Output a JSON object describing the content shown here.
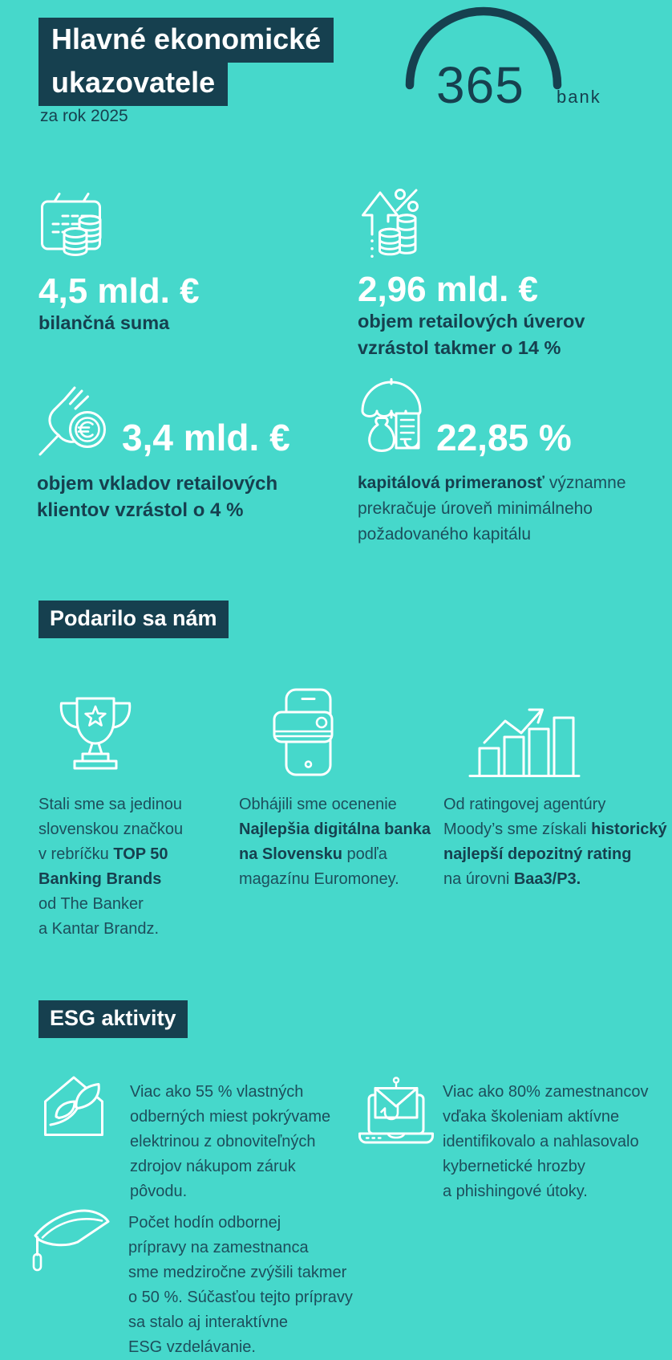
{
  "colors": {
    "background": "#46D8CB",
    "dark_block": "#16404F",
    "body_text": "#1D4E5C",
    "value_text": "#FFFFFF"
  },
  "header": {
    "title_line1": "Hlavné ekonomické",
    "title_line2": "ukazovatele",
    "subtitle": "za rok 2025"
  },
  "logo": {
    "number": "365",
    "word": "bank",
    "arc_icon": "logo-arc-icon"
  },
  "stats": [
    {
      "icon": "calendar-coins-icon",
      "value": "4,5 mld. €",
      "label": [
        {
          "t": "bilančná suma",
          "b": true
        }
      ]
    },
    {
      "icon": "growth-percent-coins-icon",
      "value": "2,96 mld. €",
      "label": [
        {
          "t": "objem retailových úverov\nvzrástol takmer o 14 %",
          "b": true
        }
      ]
    },
    {
      "icon": "hand-euro-coin-icon",
      "value": "3,4 mld. €",
      "label": [
        {
          "t": "objem vkladov retailových\nklientov vzrástol o 4 %",
          "b": true
        }
      ]
    },
    {
      "icon": "umbrella-money-bag-icon",
      "value": "22,85 %",
      "label": [
        {
          "t": "kapitálová primeranosť",
          "b": true
        },
        {
          "t": " významne\nprekračuje úroveň minimálneho\npožadovaného kapitálu",
          "b": false
        }
      ]
    }
  ],
  "sections": {
    "achievements": {
      "heading": "Podarilo sa nám",
      "items": [
        {
          "icon": "trophy-icon",
          "text": [
            {
              "t": "Stali sme sa jedinou\nslovenskou značkou\nv rebríčku ",
              "b": false
            },
            {
              "t": "TOP 50\nBanking Brands",
              "b": true
            },
            {
              "t": "\nod The Banker\na Kantar Brandz.",
              "b": false
            }
          ]
        },
        {
          "icon": "phone-card-icon",
          "text": [
            {
              "t": "Obhájili sme ocenenie\n",
              "b": false
            },
            {
              "t": "Najlepšia digitálna banka\nna Slovensku",
              "b": true
            },
            {
              "t": " podľa\nmagazínu Euromoney.",
              "b": false
            }
          ]
        },
        {
          "icon": "rating-chart-icon",
          "text": [
            {
              "t": "Od ratingovej agentúry\nMoody’s sme získali ",
              "b": false
            },
            {
              "t": "historický\nnajlepší depozitný rating",
              "b": true
            },
            {
              "t": "\nna úrovni ",
              "b": false
            },
            {
              "t": "Baa3/P3.",
              "b": true
            }
          ]
        }
      ]
    },
    "esg": {
      "heading": "ESG aktivity",
      "items": [
        {
          "icon": "eco-house-leaf-icon",
          "text": [
            {
              "t": "Viac ako 55 % vlastných\nodberných miest pokrývame\nelektrinou z obnoviteľných\nzdrojov nákupom záruk\npôvodu.",
              "b": false
            }
          ]
        },
        {
          "icon": "phishing-mail-laptop-icon",
          "text": [
            {
              "t": "Viac ako 80% zamestnancov\nvďaka školeniam aktívne\nidentifikovalo a nahlasovalo\nkybernetické hrozby\na phishingové útoky.",
              "b": false
            }
          ]
        },
        {
          "icon": "graduation-cap-icon",
          "text": [
            {
              "t": "Počet hodín odbornej\nprípravy na zamestnanca\nsme medziročne zvýšili takmer\no 50 %. Súčasťou tejto prípravy\nsa stalo aj interaktívne\nESG vzdelávanie.",
              "b": false
            }
          ]
        }
      ]
    }
  }
}
